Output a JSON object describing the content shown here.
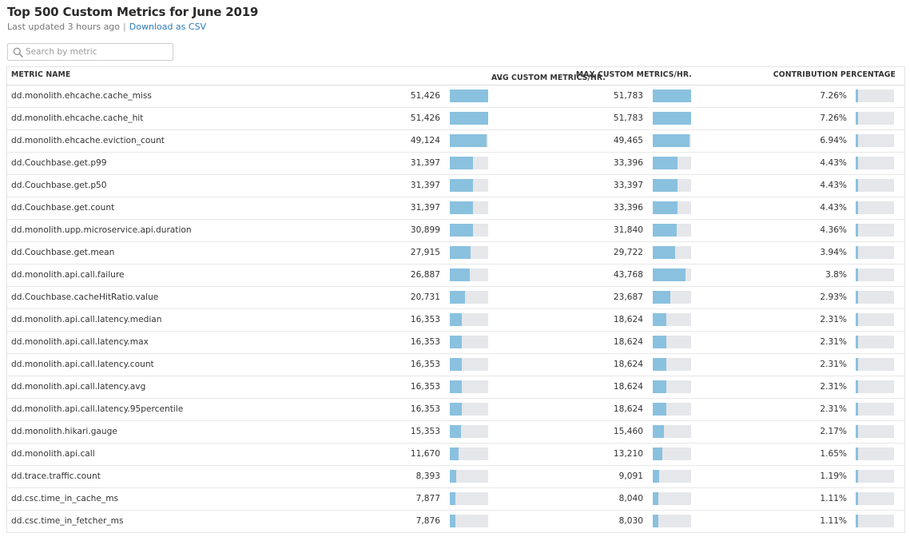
{
  "header": {
    "title": "Top 500 Custom Metrics for June 2019",
    "last_updated": "Last updated 3 hours ago",
    "separator": "|",
    "download_label": "Download as CSV"
  },
  "search": {
    "placeholder": "Search by metric",
    "value": ""
  },
  "table": {
    "columns": {
      "name": "METRIC NAME",
      "avg": "AVG CUSTOM METRICS/HR.",
      "avg_sort_icon": "↓",
      "max": "MAX CUSTOM METRICS/HR.",
      "contrib": "CONTRIBUTION PERCENTAGE"
    },
    "rows": [
      {
        "name": "dd.monolith.ehcache.cache_miss",
        "avg": "51,426",
        "max": "51,783",
        "pct": "7.26%",
        "avg_value": 51426,
        "max_value": 51783,
        "pct_value": 7.26
      },
      {
        "name": "dd.monolith.ehcache.cache_hit",
        "avg": "51,426",
        "max": "51,783",
        "pct": "7.26%",
        "avg_value": 51426,
        "max_value": 51783,
        "pct_value": 7.26
      },
      {
        "name": "dd.monolith.ehcache.eviction_count",
        "avg": "49,124",
        "max": "49,465",
        "pct": "6.94%",
        "avg_value": 49124,
        "max_value": 49465,
        "pct_value": 6.94
      },
      {
        "name": "dd.Couchbase.get.p99",
        "avg": "31,397",
        "max": "33,396",
        "pct": "4.43%",
        "avg_value": 31397,
        "max_value": 33396,
        "pct_value": 4.43
      },
      {
        "name": "dd.Couchbase.get.p50",
        "avg": "31,397",
        "max": "33,397",
        "pct": "4.43%",
        "avg_value": 31397,
        "max_value": 33397,
        "pct_value": 4.43
      },
      {
        "name": "dd.Couchbase.get.count",
        "avg": "31,397",
        "max": "33,396",
        "pct": "4.43%",
        "avg_value": 31397,
        "max_value": 33396,
        "pct_value": 4.43
      },
      {
        "name": "dd.monolith.upp.microservice.api.duration",
        "avg": "30,899",
        "max": "31,840",
        "pct": "4.36%",
        "avg_value": 30899,
        "max_value": 31840,
        "pct_value": 4.36
      },
      {
        "name": "dd.Couchbase.get.mean",
        "avg": "27,915",
        "max": "29,722",
        "pct": "3.94%",
        "avg_value": 27915,
        "max_value": 29722,
        "pct_value": 3.94
      },
      {
        "name": "dd.monolith.api.call.failure",
        "avg": "26,887",
        "max": "43,768",
        "pct": "3.8%",
        "avg_value": 26887,
        "max_value": 43768,
        "pct_value": 3.8
      },
      {
        "name": "dd.Couchbase.cacheHitRatio.value",
        "avg": "20,731",
        "max": "23,687",
        "pct": "2.93%",
        "avg_value": 20731,
        "max_value": 23687,
        "pct_value": 2.93
      },
      {
        "name": "dd.monolith.api.call.latency.median",
        "avg": "16,353",
        "max": "18,624",
        "pct": "2.31%",
        "avg_value": 16353,
        "max_value": 18624,
        "pct_value": 2.31
      },
      {
        "name": "dd.monolith.api.call.latency.max",
        "avg": "16,353",
        "max": "18,624",
        "pct": "2.31%",
        "avg_value": 16353,
        "max_value": 18624,
        "pct_value": 2.31
      },
      {
        "name": "dd.monolith.api.call.latency.count",
        "avg": "16,353",
        "max": "18,624",
        "pct": "2.31%",
        "avg_value": 16353,
        "max_value": 18624,
        "pct_value": 2.31
      },
      {
        "name": "dd.monolith.api.call.latency.avg",
        "avg": "16,353",
        "max": "18,624",
        "pct": "2.31%",
        "avg_value": 16353,
        "max_value": 18624,
        "pct_value": 2.31
      },
      {
        "name": "dd.monolith.api.call.latency.95percentile",
        "avg": "16,353",
        "max": "18,624",
        "pct": "2.31%",
        "avg_value": 16353,
        "max_value": 18624,
        "pct_value": 2.31
      },
      {
        "name": "dd.monolith.hikari.gauge",
        "avg": "15,353",
        "max": "15,460",
        "pct": "2.17%",
        "avg_value": 15353,
        "max_value": 15460,
        "pct_value": 2.17
      },
      {
        "name": "dd.monolith.api.call",
        "avg": "11,670",
        "max": "13,210",
        "pct": "1.65%",
        "avg_value": 11670,
        "max_value": 13210,
        "pct_value": 1.65
      },
      {
        "name": "dd.trace.traffic.count",
        "avg": "8,393",
        "max": "9,091",
        "pct": "1.19%",
        "avg_value": 8393,
        "max_value": 9091,
        "pct_value": 1.19
      },
      {
        "name": "dd.csc.time_in_cache_ms",
        "avg": "7,877",
        "max": "8,040",
        "pct": "1.11%",
        "avg_value": 7877,
        "max_value": 8040,
        "pct_value": 1.11
      },
      {
        "name": "dd.csc.time_in_fetcher_ms",
        "avg": "7,876",
        "max": "8,030",
        "pct": "1.11%",
        "avg_value": 7876,
        "max_value": 8030,
        "pct_value": 1.11
      }
    ]
  },
  "colors": {
    "bar_fill": "#8ac1df",
    "bar_track": "#e6e7ea",
    "link": "#2b7bb9"
  },
  "icons": {
    "search": "search-icon",
    "sort": "sort-desc-icon"
  }
}
